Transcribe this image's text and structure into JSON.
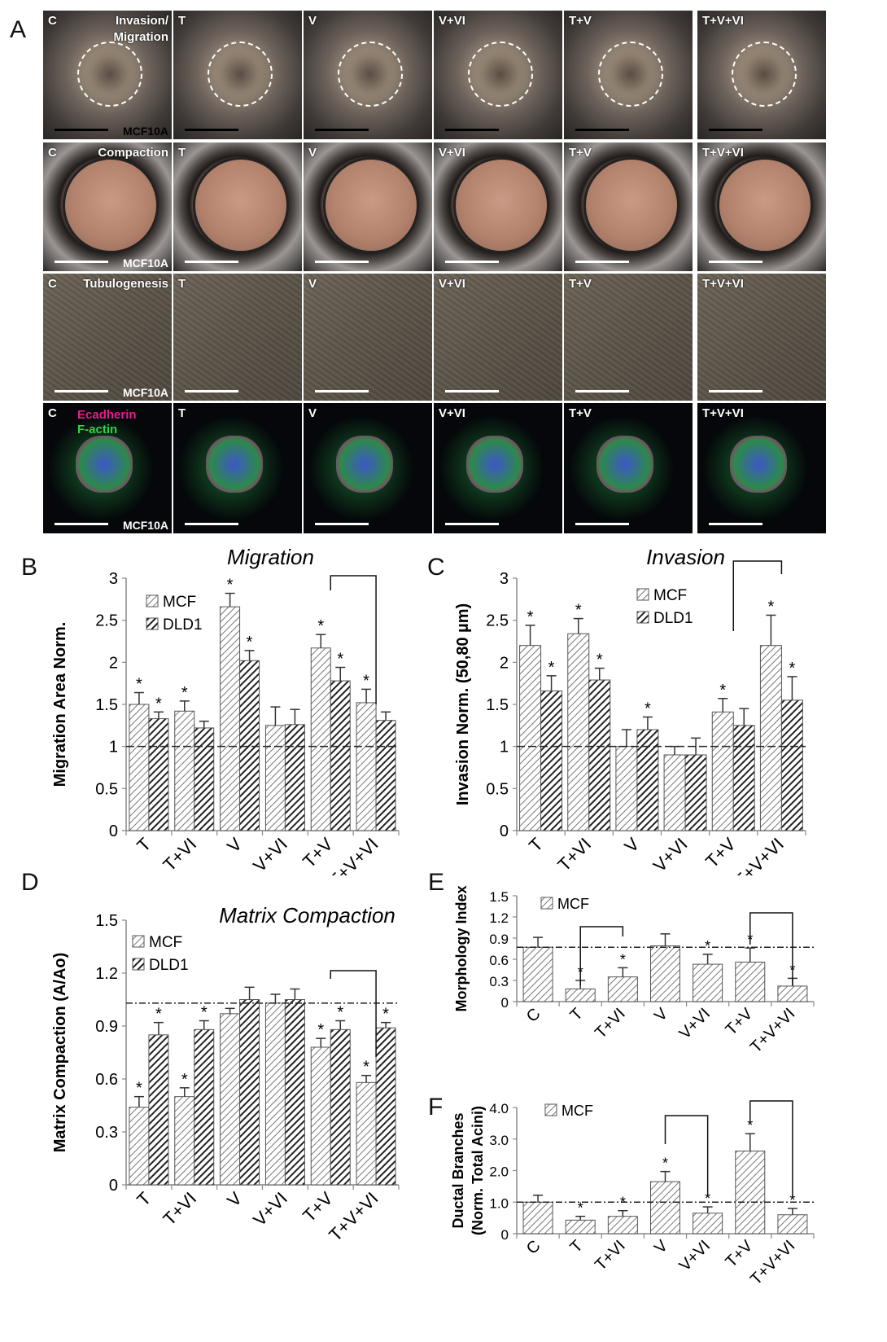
{
  "panel_letters": {
    "a": "A",
    "b": "B",
    "c": "C",
    "d": "D",
    "e": "E",
    "f": "F"
  },
  "micro": {
    "columns": [
      "C",
      "T",
      "V",
      "V+VI",
      "T+V",
      "T+V+VI"
    ],
    "cell_line": "MCF10A",
    "rows": [
      {
        "title": "Invasion/\nMigration",
        "style": "brightfield"
      },
      {
        "title": "Compaction",
        "style": "well"
      },
      {
        "title": "Tubulogenesis",
        "style": "dic"
      },
      {
        "title": "",
        "style": "fluorescence"
      }
    ],
    "stain_ecad": "Ecadherin",
    "stain_factin": "F-actin"
  },
  "colors": {
    "text": "#111111",
    "bar_light": "#bdbdbd",
    "bar_dark": "#333333",
    "ecad": "#e0208a",
    "factin": "#2fd34a"
  },
  "chart_data": [
    {
      "id": "B",
      "type": "bar",
      "title": "Migration",
      "ylabel": "Migration Area Norm.",
      "xlabel": "",
      "categories": [
        "T",
        "T+VI",
        "V",
        "V+VI",
        "T+V",
        "T+V+VI"
      ],
      "ylim": [
        0,
        3
      ],
      "yticks": [
        "0",
        "0.5",
        "1",
        "1.5",
        "2",
        "2.5",
        "3"
      ],
      "reference_line": 1,
      "legend_position": "top-left",
      "series": [
        {
          "name": "MCF",
          "values": [
            1.5,
            1.42,
            2.66,
            1.25,
            2.17,
            1.52
          ],
          "errors": [
            0.14,
            0.12,
            0.16,
            0.22,
            0.16,
            0.16
          ],
          "significant": [
            true,
            true,
            true,
            false,
            true,
            true
          ]
        },
        {
          "name": "DLD1",
          "values": [
            1.33,
            1.22,
            2.02,
            1.26,
            1.78,
            1.31
          ],
          "errors": [
            0.08,
            0.08,
            0.12,
            0.18,
            0.16,
            0.1
          ],
          "significant": [
            true,
            false,
            true,
            false,
            true,
            false
          ]
        }
      ],
      "brackets": [
        {
          "from": "T+V",
          "to": "T+V+VI"
        }
      ],
      "significance_mark": "*"
    },
    {
      "id": "C",
      "type": "bar",
      "title": "Invasion",
      "ylabel": "Invasion Norm. (50,80 µm)",
      "xlabel": "",
      "categories": [
        "T",
        "T+VI",
        "V",
        "V+VI",
        "T+V",
        "T+V+VI"
      ],
      "ylim": [
        0,
        3
      ],
      "yticks": [
        "0",
        "0.5",
        "1",
        "1.5",
        "2",
        "2.5",
        "3"
      ],
      "reference_line": 1,
      "legend_position": "top-right",
      "series": [
        {
          "name": "MCF",
          "values": [
            2.2,
            2.34,
            1.0,
            0.9,
            1.41,
            2.2
          ],
          "errors": [
            0.24,
            0.18,
            0.2,
            0.1,
            0.16,
            0.36
          ],
          "significant": [
            true,
            true,
            false,
            false,
            true,
            true
          ]
        },
        {
          "name": "DLD1",
          "values": [
            1.66,
            1.79,
            1.2,
            0.9,
            1.25,
            1.55
          ],
          "errors": [
            0.18,
            0.14,
            0.15,
            0.2,
            0.2,
            0.28
          ],
          "significant": [
            true,
            true,
            true,
            false,
            false,
            true
          ]
        }
      ],
      "brackets": [
        {
          "from": "T+V",
          "to": "T+V+VI"
        }
      ],
      "significance_mark": "*"
    },
    {
      "id": "D",
      "type": "bar",
      "title": "Matrix Compaction",
      "ylabel": "Matrix Compaction (A/Ao)",
      "xlabel": "",
      "categories": [
        "T",
        "T+VI",
        "V",
        "V+VI",
        "T+V",
        "T+V+VI"
      ],
      "ylim": [
        0,
        1.5
      ],
      "yticks": [
        "0",
        "0.3",
        "0.6",
        "0.9",
        "1.2",
        "1.5"
      ],
      "reference_line": 1.03,
      "legend_position": "top-left",
      "series": [
        {
          "name": "MCF",
          "values": [
            0.44,
            0.5,
            0.97,
            1.03,
            0.78,
            0.58
          ],
          "errors": [
            0.06,
            0.05,
            0.03,
            0.05,
            0.05,
            0.04
          ],
          "significant": [
            true,
            true,
            false,
            false,
            true,
            true
          ]
        },
        {
          "name": "DLD1",
          "values": [
            0.85,
            0.88,
            1.05,
            1.05,
            0.88,
            0.89
          ],
          "errors": [
            0.07,
            0.05,
            0.07,
            0.06,
            0.05,
            0.03
          ],
          "significant": [
            true,
            true,
            false,
            false,
            true,
            true
          ]
        }
      ],
      "brackets": [
        {
          "from": "T+V",
          "to": "T+V+VI"
        }
      ],
      "significance_mark": "*"
    },
    {
      "id": "E",
      "type": "bar",
      "title": "",
      "ylabel": "Morphology Index",
      "xlabel": "",
      "categories": [
        "C",
        "T",
        "T+VI",
        "V",
        "V+VI",
        "T+V",
        "T+V+VI"
      ],
      "ylim": [
        0,
        1.5
      ],
      "yticks": [
        "0",
        "0.3",
        "0.6",
        "0.9",
        "1.2",
        "1.5"
      ],
      "reference_line": 0.77,
      "legend_position": "top-left",
      "series": [
        {
          "name": "MCF",
          "values": [
            0.77,
            0.18,
            0.35,
            0.79,
            0.53,
            0.56,
            0.22
          ],
          "errors": [
            0.14,
            0.12,
            0.13,
            0.17,
            0.14,
            0.2,
            0.11
          ],
          "significant": [
            false,
            true,
            true,
            false,
            true,
            true,
            true
          ]
        }
      ],
      "brackets": [
        {
          "from": "T",
          "to": "T+VI"
        },
        {
          "from": "T+V",
          "to": "T+V+VI"
        }
      ],
      "significance_mark": "*"
    },
    {
      "id": "F",
      "type": "bar",
      "title": "",
      "ylabel": "Ductal Branches\n(Norm. Total Acini)",
      "xlabel": "",
      "categories": [
        "C",
        "T",
        "T+VI",
        "V",
        "V+VI",
        "T+V",
        "T+V+VI"
      ],
      "ylim": [
        0,
        4.0
      ],
      "yticks": [
        "0",
        "1.0",
        "2.0",
        "3.0",
        "4.0"
      ],
      "reference_line": 1.0,
      "legend_position": "top-left",
      "series": [
        {
          "name": "MCF",
          "values": [
            1.0,
            0.43,
            0.55,
            1.65,
            0.65,
            2.62,
            0.6
          ],
          "errors": [
            0.22,
            0.12,
            0.18,
            0.32,
            0.2,
            0.55,
            0.2
          ],
          "significant": [
            false,
            true,
            true,
            true,
            true,
            true,
            true
          ]
        }
      ],
      "brackets": [
        {
          "from": "V",
          "to": "V+VI"
        },
        {
          "from": "T+V",
          "to": "T+V+VI"
        }
      ],
      "significance_mark": "*"
    }
  ]
}
